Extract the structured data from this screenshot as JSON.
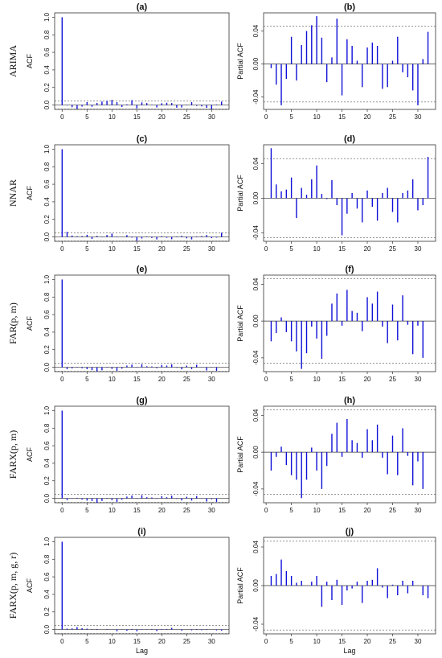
{
  "row_labels": [
    "ARIMA",
    "NNAR",
    "FAR(p, m)",
    "FARX(p, m)",
    "FARX(p, m, g, r)"
  ],
  "chart_data": [
    {
      "type": "bar",
      "title": "(a)",
      "ylabel": "ACF",
      "xlabel": "",
      "ylim": [
        -0.05,
        1.05
      ],
      "yticks": [
        0.0,
        0.2,
        0.4,
        0.6,
        0.8,
        1.0
      ],
      "xticks": [
        0,
        5,
        10,
        15,
        20,
        25,
        30
      ],
      "xlim": [
        -1.5,
        33.5
      ],
      "conf": 0.046,
      "x": [
        0,
        1,
        2,
        3,
        4,
        5,
        6,
        7,
        8,
        9,
        10,
        11,
        12,
        13,
        14,
        15,
        16,
        17,
        18,
        19,
        20,
        21,
        22,
        23,
        24,
        25,
        26,
        27,
        28,
        29,
        30,
        31,
        32
      ],
      "values": [
        1.0,
        -0.005,
        -0.025,
        -0.045,
        -0.018,
        0.033,
        -0.02,
        0.023,
        0.04,
        0.047,
        0.058,
        0.032,
        -0.022,
        0.008,
        0.055,
        -0.038,
        0.03,
        0.022,
        0.004,
        -0.028,
        0.02,
        0.026,
        0.022,
        -0.03,
        -0.028,
        0.004,
        0.033,
        -0.01,
        -0.016,
        -0.032,
        -0.047,
        0.006,
        0.039
      ]
    },
    {
      "type": "bar",
      "title": "(b)",
      "ylabel": "Partial ACF",
      "xlabel": "",
      "ylim": [
        -0.055,
        0.062
      ],
      "yticks": [
        -0.04,
        0.0,
        0.04
      ],
      "xticks": [
        0,
        5,
        10,
        15,
        20,
        25,
        30
      ],
      "xlim": [
        -0.5,
        33.5
      ],
      "conf": 0.046,
      "x": [
        1,
        2,
        3,
        4,
        5,
        6,
        7,
        8,
        9,
        10,
        11,
        12,
        13,
        14,
        15,
        16,
        17,
        18,
        19,
        20,
        21,
        22,
        23,
        24,
        25,
        26,
        27,
        28,
        29,
        30,
        31,
        32
      ],
      "values": [
        -0.005,
        -0.025,
        -0.05,
        -0.018,
        0.033,
        -0.02,
        0.023,
        0.04,
        0.047,
        0.058,
        0.032,
        -0.022,
        0.008,
        0.055,
        -0.038,
        0.03,
        0.022,
        0.004,
        -0.028,
        0.02,
        0.026,
        0.022,
        -0.03,
        -0.028,
        0.004,
        0.033,
        -0.01,
        -0.016,
        -0.032,
        -0.05,
        0.006,
        0.039
      ]
    },
    {
      "type": "bar",
      "title": "(c)",
      "ylabel": "ACF",
      "xlabel": "",
      "ylim": [
        -0.05,
        1.05
      ],
      "yticks": [
        0.0,
        0.2,
        0.4,
        0.6,
        0.8,
        1.0
      ],
      "xticks": [
        0,
        5,
        10,
        15,
        20,
        25,
        30
      ],
      "xlim": [
        -1.5,
        33.5
      ],
      "conf": 0.046,
      "x": [
        0,
        1,
        2,
        3,
        4,
        5,
        6,
        7,
        8,
        9,
        10,
        11,
        12,
        13,
        14,
        15,
        16,
        17,
        18,
        19,
        20,
        21,
        22,
        23,
        24,
        25,
        26,
        27,
        28,
        29,
        30,
        31,
        32
      ],
      "values": [
        1.0,
        0.058,
        0.016,
        0.008,
        0.01,
        0.024,
        -0.023,
        0.012,
        0.004,
        0.022,
        0.038,
        0.005,
        -0.001,
        0.021,
        -0.008,
        -0.043,
        -0.018,
        0.006,
        -0.012,
        -0.028,
        0.009,
        -0.01,
        -0.026,
        0.006,
        0.012,
        -0.016,
        -0.028,
        0.006,
        0.009,
        0.022,
        -0.014,
        -0.008,
        0.048
      ]
    },
    {
      "type": "bar",
      "title": "(d)",
      "ylabel": "Partial ACF",
      "xlabel": "",
      "ylim": [
        -0.05,
        0.062
      ],
      "yticks": [
        -0.04,
        0.0,
        0.04
      ],
      "xticks": [
        0,
        5,
        10,
        15,
        20,
        25,
        30
      ],
      "xlim": [
        -0.5,
        33.5
      ],
      "conf": 0.046,
      "x": [
        1,
        2,
        3,
        4,
        5,
        6,
        7,
        8,
        9,
        10,
        11,
        12,
        13,
        14,
        15,
        16,
        17,
        18,
        19,
        20,
        21,
        22,
        23,
        24,
        25,
        26,
        27,
        28,
        29,
        30,
        31,
        32
      ],
      "values": [
        0.058,
        0.016,
        0.008,
        0.01,
        0.024,
        -0.023,
        0.012,
        0.004,
        0.022,
        0.038,
        0.005,
        -0.001,
        0.021,
        -0.008,
        -0.043,
        -0.018,
        0.006,
        -0.012,
        -0.028,
        0.009,
        -0.01,
        -0.026,
        0.006,
        0.012,
        -0.016,
        -0.028,
        0.006,
        0.009,
        0.022,
        -0.014,
        -0.008,
        0.048
      ]
    },
    {
      "type": "bar",
      "title": "(e)",
      "ylabel": "ACF",
      "xlabel": "",
      "ylim": [
        -0.05,
        1.05
      ],
      "yticks": [
        0.0,
        0.2,
        0.4,
        0.6,
        0.8,
        1.0
      ],
      "xticks": [
        0,
        5,
        10,
        15,
        20,
        25,
        30
      ],
      "xlim": [
        -1.5,
        33.5
      ],
      "conf": 0.046,
      "x": [
        0,
        1,
        2,
        3,
        4,
        5,
        6,
        7,
        8,
        9,
        10,
        11,
        12,
        13,
        14,
        15,
        16,
        17,
        18,
        19,
        20,
        21,
        22,
        23,
        24,
        25,
        26,
        27,
        28,
        29,
        30,
        31,
        32
      ],
      "values": [
        1.0,
        -0.022,
        -0.013,
        0.004,
        -0.012,
        -0.022,
        -0.033,
        -0.047,
        -0.035,
        -0.006,
        -0.019,
        -0.041,
        -0.016,
        0.019,
        0.03,
        -0.005,
        0.034,
        0.011,
        0.009,
        -0.011,
        0.026,
        0.019,
        0.032,
        -0.006,
        -0.024,
        0.018,
        -0.021,
        0.028,
        -0.004,
        -0.036,
        -0.005,
        -0.04,
        0.0
      ]
    },
    {
      "type": "bar",
      "title": "(f)",
      "ylabel": "Partial ACF",
      "xlabel": "",
      "ylim": [
        -0.055,
        0.05
      ],
      "yticks": [
        -0.04,
        0.0,
        0.04
      ],
      "xticks": [
        0,
        5,
        10,
        15,
        20,
        25,
        30
      ],
      "xlim": [
        -0.5,
        33.5
      ],
      "conf": 0.046,
      "x": [
        1,
        2,
        3,
        4,
        5,
        6,
        7,
        8,
        9,
        10,
        11,
        12,
        13,
        14,
        15,
        16,
        17,
        18,
        19,
        20,
        21,
        22,
        23,
        24,
        25,
        26,
        27,
        28,
        29,
        30,
        31,
        32
      ],
      "values": [
        -0.022,
        -0.013,
        0.004,
        -0.012,
        -0.022,
        -0.033,
        -0.052,
        -0.035,
        -0.006,
        -0.019,
        -0.041,
        -0.016,
        0.019,
        0.03,
        -0.005,
        0.034,
        0.011,
        0.009,
        -0.011,
        0.026,
        0.019,
        0.032,
        -0.006,
        -0.024,
        0.018,
        -0.021,
        0.028,
        -0.004,
        -0.036,
        -0.005,
        -0.04,
        0.0
      ]
    },
    {
      "type": "bar",
      "title": "(g)",
      "ylabel": "ACF",
      "xlabel": "",
      "ylim": [
        -0.05,
        1.05
      ],
      "yticks": [
        0.0,
        0.2,
        0.4,
        0.6,
        0.8,
        1.0
      ],
      "xticks": [
        0,
        5,
        10,
        15,
        20,
        25,
        30
      ],
      "xlim": [
        -1.5,
        33.5
      ],
      "conf": 0.046,
      "x": [
        0,
        1,
        2,
        3,
        4,
        5,
        6,
        7,
        8,
        9,
        10,
        11,
        12,
        13,
        14,
        15,
        16,
        17,
        18,
        19,
        20,
        21,
        22,
        23,
        24,
        25,
        26,
        27,
        28,
        29,
        30,
        31,
        32
      ],
      "values": [
        1.0,
        -0.02,
        -0.005,
        0.006,
        -0.014,
        -0.025,
        -0.03,
        -0.05,
        -0.03,
        0.005,
        -0.02,
        -0.04,
        -0.015,
        0.02,
        0.032,
        -0.005,
        0.036,
        0.013,
        0.01,
        -0.006,
        0.025,
        0.013,
        0.03,
        -0.006,
        -0.024,
        0.018,
        -0.025,
        0.026,
        -0.004,
        -0.036,
        -0.01,
        -0.04,
        0.0
      ]
    },
    {
      "type": "bar",
      "title": "(h)",
      "ylabel": "Partial ACF",
      "xlabel": "",
      "ylim": [
        -0.055,
        0.05
      ],
      "yticks": [
        -0.04,
        0.0,
        0.04
      ],
      "xticks": [
        0,
        5,
        10,
        15,
        20,
        25,
        30
      ],
      "xlim": [
        -0.5,
        33.5
      ],
      "conf": 0.046,
      "x": [
        1,
        2,
        3,
        4,
        5,
        6,
        7,
        8,
        9,
        10,
        11,
        12,
        13,
        14,
        15,
        16,
        17,
        18,
        19,
        20,
        21,
        22,
        23,
        24,
        25,
        26,
        27,
        28,
        29,
        30,
        31,
        32
      ],
      "values": [
        -0.02,
        -0.005,
        0.006,
        -0.014,
        -0.025,
        -0.03,
        -0.05,
        -0.03,
        0.005,
        -0.02,
        -0.04,
        -0.015,
        0.02,
        0.032,
        -0.005,
        0.036,
        0.013,
        0.01,
        -0.006,
        0.025,
        0.013,
        0.03,
        -0.006,
        -0.024,
        0.018,
        -0.025,
        0.026,
        -0.004,
        -0.036,
        -0.01,
        -0.04,
        0.0
      ]
    },
    {
      "type": "bar",
      "title": "(i)",
      "ylabel": "ACF",
      "xlabel": "Lag",
      "ylim": [
        -0.05,
        1.05
      ],
      "yticks": [
        0.0,
        0.2,
        0.4,
        0.6,
        0.8,
        1.0
      ],
      "xticks": [
        0,
        5,
        10,
        15,
        20,
        25,
        30
      ],
      "xlim": [
        -1.5,
        33.5
      ],
      "conf": 0.046,
      "x": [
        0,
        1,
        2,
        3,
        4,
        5,
        6,
        7,
        8,
        9,
        10,
        11,
        12,
        13,
        14,
        15,
        16,
        17,
        18,
        19,
        20,
        21,
        22,
        23,
        24,
        25,
        26,
        27,
        28,
        29,
        30,
        31,
        32
      ],
      "values": [
        1.0,
        0.01,
        0.012,
        0.027,
        0.015,
        0.01,
        0.003,
        0.005,
        0.0,
        0.004,
        0.001,
        -0.02,
        0.002,
        -0.015,
        0.006,
        -0.02,
        -0.005,
        -0.003,
        0.004,
        -0.018,
        0.005,
        0.006,
        0.018,
        -0.002,
        -0.013,
        0.001,
        -0.01,
        0.005,
        -0.008,
        0.005,
        0.0,
        -0.01,
        -0.013
      ]
    },
    {
      "type": "bar",
      "title": "(j)",
      "ylabel": "Partial ACF",
      "xlabel": "Lag",
      "ylim": [
        -0.05,
        0.05
      ],
      "yticks": [
        -0.04,
        0.0,
        0.04
      ],
      "xticks": [
        0,
        5,
        10,
        15,
        20,
        25,
        30
      ],
      "xlim": [
        -0.5,
        33.5
      ],
      "conf": 0.046,
      "x": [
        1,
        2,
        3,
        4,
        5,
        6,
        7,
        8,
        9,
        10,
        11,
        12,
        13,
        14,
        15,
        16,
        17,
        18,
        19,
        20,
        21,
        22,
        23,
        24,
        25,
        26,
        27,
        28,
        29,
        30,
        31,
        32
      ],
      "values": [
        0.01,
        0.012,
        0.027,
        0.015,
        0.01,
        0.003,
        0.005,
        0.0,
        0.004,
        0.01,
        -0.022,
        0.004,
        -0.015,
        0.006,
        -0.02,
        -0.005,
        -0.003,
        0.004,
        -0.018,
        0.005,
        0.006,
        0.018,
        -0.002,
        -0.013,
        0.001,
        -0.01,
        0.005,
        -0.008,
        0.005,
        0.0,
        -0.01,
        -0.013
      ]
    }
  ]
}
